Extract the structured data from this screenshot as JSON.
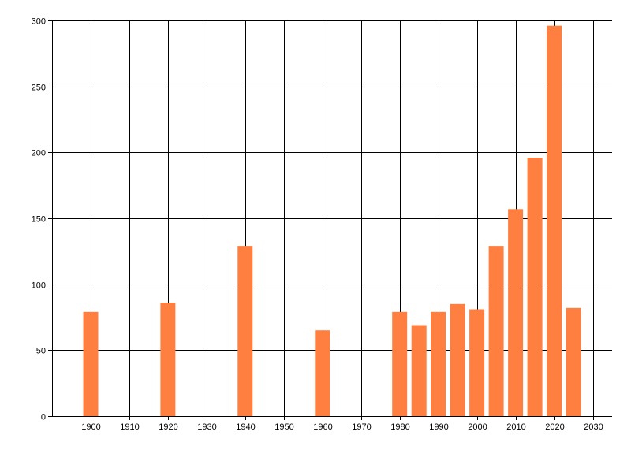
{
  "chart_data": {
    "type": "bar",
    "x": [
      1900,
      1920,
      1940,
      1960,
      1980,
      1985,
      1990,
      1995,
      2000,
      2005,
      2010,
      2015,
      2020,
      2025
    ],
    "values": [
      79,
      86,
      129,
      65,
      79,
      69,
      79,
      85,
      81,
      129,
      157,
      196,
      296,
      82
    ],
    "xlim": [
      1890,
      2035
    ],
    "ylim": [
      0,
      300
    ],
    "x_ticks": [
      1900,
      1910,
      1920,
      1930,
      1940,
      1950,
      1960,
      1970,
      1980,
      1990,
      2000,
      2010,
      2020,
      2030
    ],
    "y_ticks": [
      0,
      50,
      100,
      150,
      200,
      250,
      300
    ],
    "grid": true,
    "title": "",
    "xlabel": "",
    "ylabel": "",
    "colors": {
      "bar": "#ff7f40",
      "grid": "#000000",
      "axis": "#000000"
    }
  }
}
